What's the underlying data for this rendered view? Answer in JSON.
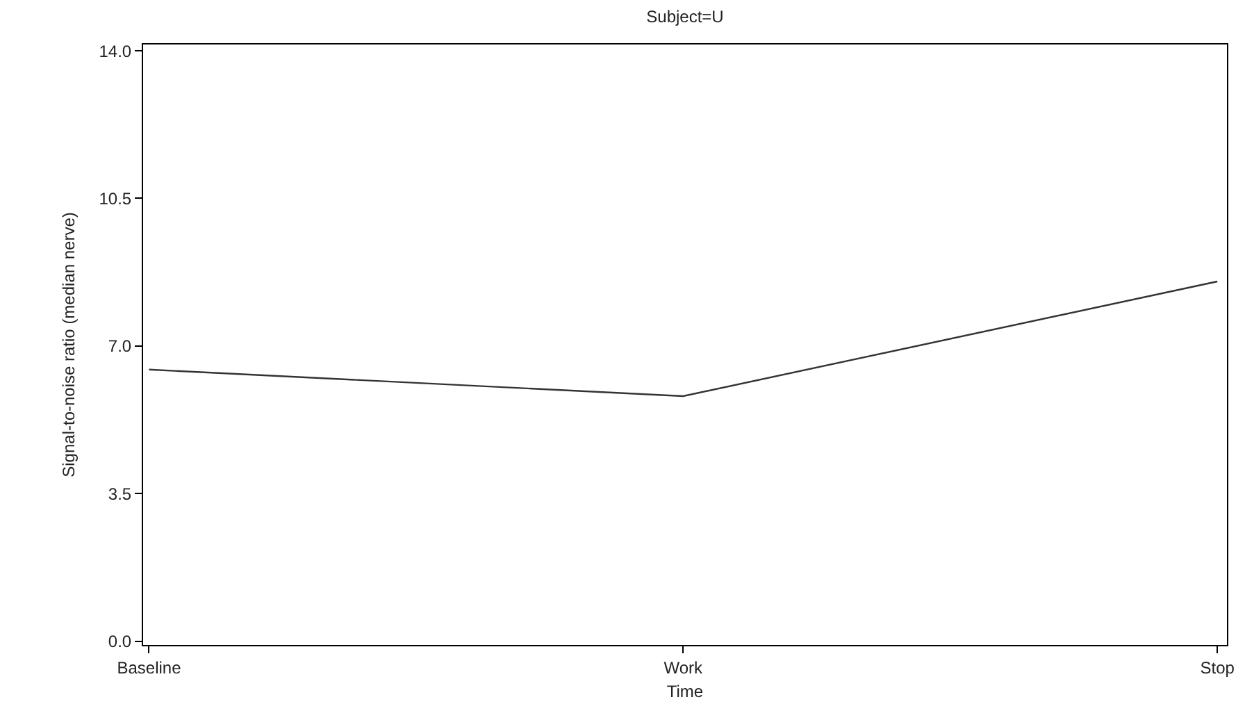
{
  "chart_data": {
    "type": "line",
    "title": "Subject=U",
    "xlabel": "Time",
    "ylabel": "Signal-to-noise ratio (median nerve)",
    "categories": [
      "Baseline",
      "Work",
      "Stop"
    ],
    "series": [
      {
        "color": "#333333",
        "values": [
          6.44,
          5.81,
          8.53
        ]
      }
    ],
    "ylim": [
      -0.09,
      14.15
    ],
    "yticks": [
      {
        "value": 0,
        "label": "0.0"
      },
      {
        "value": 3.5,
        "label": "3.5"
      },
      {
        "value": 7,
        "label": "7.0"
      },
      {
        "value": 10.5,
        "label": "10.5"
      },
      {
        "value": 14,
        "label": "14.0"
      }
    ],
    "marker": "none",
    "line_style": "solid"
  }
}
